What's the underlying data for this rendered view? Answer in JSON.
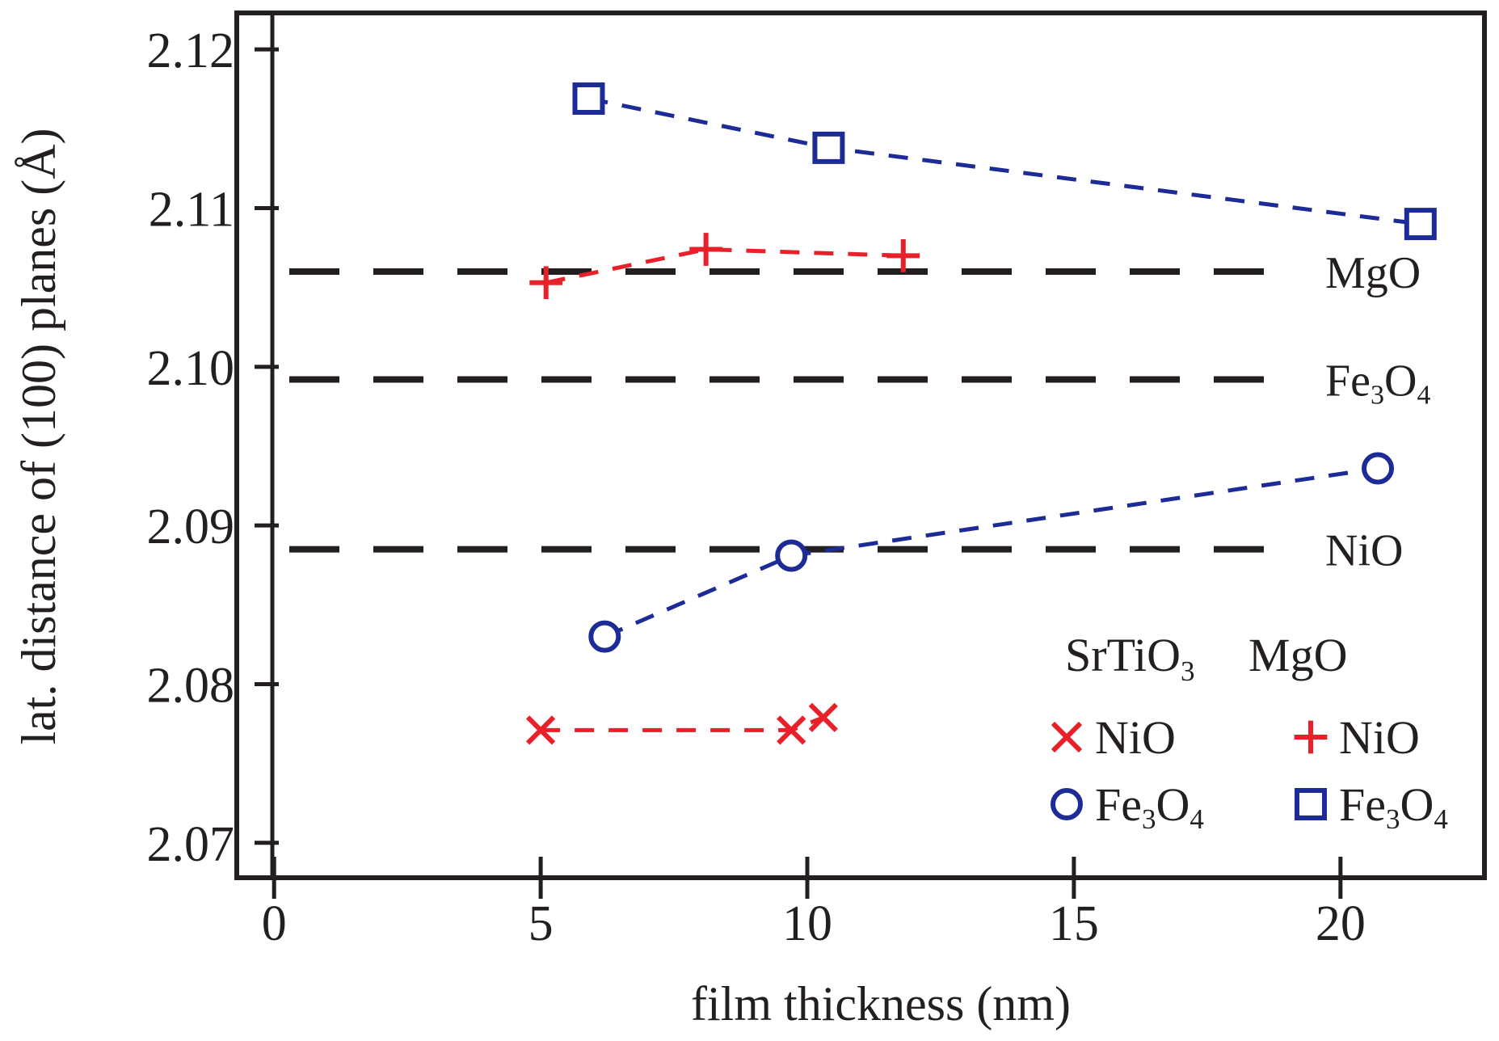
{
  "chart_data": {
    "type": "scatter",
    "xlabel": "film thickness (nm)",
    "ylabel": "lat. distance of (100) planes (Å)",
    "xlim": [
      -0.7,
      22.7
    ],
    "ylim": [
      2.0678,
      2.1223
    ],
    "xticks": [
      0,
      5,
      10,
      15,
      20
    ],
    "xtick_labels": [
      "0",
      "5",
      "10",
      "15",
      "20"
    ],
    "yticks": [
      2.07,
      2.08,
      2.09,
      2.1,
      2.11,
      2.12
    ],
    "ytick_labels": [
      "2.07",
      "2.08",
      "2.09",
      "2.10",
      "2.11",
      "2.12"
    ],
    "grid": false,
    "reference_lines": [
      {
        "label": "MgO",
        "y": 2.106
      },
      {
        "label": "Fe3O4",
        "y": 2.0992
      },
      {
        "label": "NiO",
        "y": 2.0885
      }
    ],
    "series": [
      {
        "name": "NiO on SrTiO3",
        "substrate": "SrTiO3",
        "film": "NiO",
        "marker": "x",
        "color": "#e8202a",
        "x": [
          5.0,
          9.7,
          10.3
        ],
        "y": [
          2.0771,
          2.0771,
          2.0779
        ]
      },
      {
        "name": "Fe3O4 on SrTiO3",
        "substrate": "SrTiO3",
        "film": "Fe3O4",
        "marker": "circle",
        "color": "#1d2b96",
        "x": [
          6.2,
          9.7,
          20.7
        ],
        "y": [
          2.083,
          2.0881,
          2.0936
        ]
      },
      {
        "name": "NiO on MgO",
        "substrate": "MgO",
        "film": "NiO",
        "marker": "plus",
        "color": "#e8202a",
        "x": [
          5.1,
          8.1,
          11.8
        ],
        "y": [
          2.1053,
          2.1074,
          2.107
        ]
      },
      {
        "name": "Fe3O4 on MgO",
        "substrate": "MgO",
        "film": "Fe3O4",
        "marker": "square",
        "color": "#1d2b96",
        "x": [
          5.9,
          10.4,
          21.5
        ],
        "y": [
          2.1169,
          2.1138,
          2.109
        ]
      }
    ],
    "legend": {
      "placement": "bottom-right",
      "column_headers": [
        {
          "base": "SrTiO",
          "sub": "3"
        },
        {
          "base": "MgO",
          "sub": ""
        }
      ],
      "entries": [
        {
          "marker": "x",
          "color": "#e8202a",
          "label": "NiO"
        },
        {
          "marker": "plus",
          "color": "#e8202a",
          "label": "NiO"
        },
        {
          "marker": "circle",
          "color": "#1d2b96",
          "label": "Fe3O4"
        },
        {
          "marker": "square",
          "color": "#1d2b96",
          "label": "Fe3O4"
        }
      ]
    }
  },
  "colors": {
    "axis": "#231f20",
    "reference_line": "#231f20",
    "red_series": "#e8202a",
    "blue_series": "#1d2b96"
  }
}
